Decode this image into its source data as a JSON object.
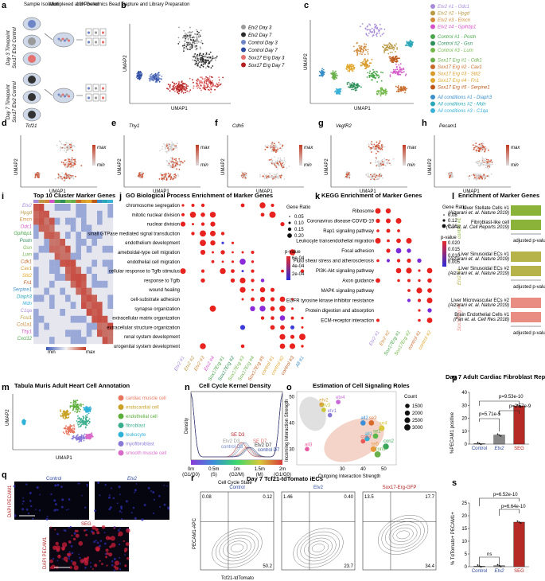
{
  "panel_letters": [
    "a",
    "b",
    "c",
    "d",
    "e",
    "f",
    "g",
    "h",
    "i",
    "j",
    "k",
    "l",
    "m",
    "n",
    "o",
    "p",
    "q",
    "r",
    "s"
  ],
  "colors": {
    "etv2_d3": "#9a9a9a",
    "etv2_d7": "#2b2b2b",
    "ctrl_d3": "#6e86c8",
    "ctrl_d7": "#2c4aa0",
    "seg_d3": "#e57070",
    "seg_d7": "#b32020",
    "heat_hi": "#c23b22",
    "heat_lo": "#dcdcdc",
    "bar_red": "#b52a24",
    "bar_grey": "#888888",
    "gsea_green": "#8bb33a",
    "gsea_olive": "#b6b34a",
    "gsea_salmon": "#e98c82"
  },
  "panel_a": {
    "header": [
      "Sample Isolation",
      "Multiplexed and Pooled",
      "10X Genomics Bead Capture and Library Preparation"
    ],
    "timepoint_d3": "Day 3 Timepoint",
    "timepoint_d7": "Day 7 Timepoint",
    "side_d3": "Sox17 Etv2 Control",
    "side_d7": "Sox17 Etv2 Control"
  },
  "panel_b": {
    "ylabel": "UMAP2",
    "xlabel": "UMAP1",
    "legend": [
      {
        "label": "Etv2 Day 3",
        "color": "#9a9a9a"
      },
      {
        "label": "Etv2 Day 7",
        "color": "#2b2b2b"
      },
      {
        "label": "Control Day 3",
        "color": "#6e86c8"
      },
      {
        "label": "Control Day 7",
        "color": "#2c4aa0"
      },
      {
        "label": "Sox17 Erg Day 3",
        "color": "#e57070"
      },
      {
        "label": "Sox17 Erg Day 7",
        "color": "#b32020"
      }
    ]
  },
  "panel_c": {
    "ylabel": "UMAP2",
    "xlabel": "UMAP1",
    "legend": [
      {
        "label": "Etv2 #1 - Odc1",
        "color": "#a78bd8"
      },
      {
        "label": "Etv2 #2 - Hpgd",
        "color": "#b99a45"
      },
      {
        "label": "Etv2 #3 - Emcn",
        "color": "#d08a3a"
      },
      {
        "label": "Etv2 #4 - Gpihbp1",
        "color": "#d455c8"
      },
      {
        "label": "Control #1 - Postn",
        "color": "#4aa64a"
      },
      {
        "label": "Control #2 - Gsn",
        "color": "#2f8f5a"
      },
      {
        "label": "Control #3 - Lum",
        "color": "#73b84a"
      },
      {
        "label": "Sox17 Erg #1 - Cdk1",
        "color": "#6ab04c"
      },
      {
        "label": "Sox17 Erg #2 - Cav1",
        "color": "#c86a2a"
      },
      {
        "label": "Sox17 Erg #3 - Stit2",
        "color": "#d89b2a"
      },
      {
        "label": "Sox17 Erg #4 - Fn1",
        "color": "#e2a72a"
      },
      {
        "label": "Sox17 Erg #5 - Serpine1",
        "color": "#bd5a1a"
      },
      {
        "label": "All conditions #1 - Diaph3",
        "color": "#3a8fc8"
      },
      {
        "label": "All conditions #2 - Mdn",
        "color": "#2aa7b8"
      },
      {
        "label": "All conditions #3 - C1qa",
        "color": "#3ab2d8"
      }
    ]
  },
  "feature_plots": [
    {
      "letter": "d",
      "gene": "Tcf21"
    },
    {
      "letter": "e",
      "gene": "Thy1"
    },
    {
      "letter": "f",
      "gene": "Cdh5"
    },
    {
      "letter": "g",
      "gene": "VegfR2"
    },
    {
      "letter": "h",
      "gene": "Pecam1"
    }
  ],
  "feature_scale": {
    "max": "max",
    "min": "min",
    "ylabel": "UMAP2",
    "xlabel": "UMAP1"
  },
  "panel_i": {
    "title": "Top 10 Cluster Marker Genes",
    "genes": [
      "Etv2",
      "Hpgd",
      "Emcn",
      "Odc1",
      "Gpihbp1",
      "Postn",
      "Gsn",
      "Lum",
      "Cdk1",
      "Cav1",
      "Stit2",
      "Fn1",
      "Serpine1",
      "Diaph3",
      "Mdn",
      "C1qa",
      "Fosl1",
      "Col1a1",
      "Thy1",
      "Cxcl12"
    ],
    "scale_min": "min",
    "scale_max": "max"
  },
  "panel_j": {
    "title": "GO Biological Process Enrichment of Marker Genes",
    "terms": [
      "chromosome segregation",
      "mitotic nuclear division",
      "nuclear division",
      "small GTPase mediated signal transduction",
      "endothelium development",
      "ameboidal-type cell migration",
      "endothelial cell migration",
      "cellular response to Tgfb stimulus",
      "response to Tgfb",
      "wound healing",
      "cell-substrate adhesion",
      "synapse organization",
      "extracellular matrix organization",
      "extracellular structure organization",
      "renal system development",
      "urogenital system development"
    ],
    "clusters": [
      "Etv2 #1",
      "Etv2 #2",
      "Etv2 #3",
      "Etv2 #4",
      "Sox17Erg #1",
      "Sox17Erg #2",
      "Sox17Erg #3",
      "Sox17Erg #4",
      "Sox17Erg #5",
      "control #1",
      "control #2",
      "control #3",
      "All #1"
    ],
    "legend_size_title": "Gene Ratio",
    "size_labels": [
      "0.05",
      "0.10",
      "0.15",
      "0.20"
    ],
    "legend_p_title": "p-value",
    "p_labels": [
      "6e-04",
      "4e-04",
      "2e-04"
    ]
  },
  "panel_k": {
    "title": "KEGG Enrichment of Marker Genes",
    "terms": [
      "Ribosome",
      "Coronavirus disease-COVID-19",
      "Rap1 signaling pathway",
      "Leukocyte transendothelial migration",
      "Focal adhesion",
      "Fluid shear stress and atherosclerosis",
      "PI3K-Akt signaling pathway",
      "Axon guidance",
      "MAPK signaling pathway",
      "EGFR tyrosine kinase inhibitor resistance",
      "Protein digestion and absorption",
      "ECM-receptor interaction"
    ],
    "clusters": [
      "Etv2 #1",
      "Etv2 #2",
      "Sox17Erg #1",
      "Sox17Erg #2",
      "control #1",
      "control #2"
    ],
    "legend_size_title": "Gene Ratio",
    "size_labels": [
      "0.08",
      "0.12",
      "0.16"
    ],
    "legend_p_title": "p-value",
    "p_labels": [
      "0.020",
      "0.015",
      "0.010",
      "0.005"
    ]
  },
  "panel_l": {
    "title": "Enrichment of Marker Genes",
    "groups": [
      {
        "name": "control #1",
        "color": "#8bb33a",
        "items": [
          "Liver Stellate Cells #1 (Aizarani et. al. Nature 2019)",
          "Fibroblast-like cell (Cui et. al. Cell Reports 2019)"
        ]
      },
      {
        "name": "Etv2 #4",
        "color": "#b6b34a",
        "items": [
          "Liver Sinusoidal ECs #1 (Aizarani et. al. Nature 2019)",
          "Liver Sinusoidal ECs #2 (Aizarani et. al. Nature 2019)"
        ]
      },
      {
        "name": "Sox17Erg #3",
        "color": "#e98c82",
        "items": [
          "Liver Microvascular ECs #2 (Aizarani et. al. Nature 2019)",
          "Brain Endothelial Cells #1 (Fan et. al. Cell Res 2018)"
        ]
      }
    ],
    "xlabel": "adjusted p-value"
  },
  "panel_m": {
    "title": "Tabula Muris Adult Heart Cell Annotation",
    "xlabel": "UMAP1",
    "ylabel": "UMAP2",
    "legend": [
      {
        "label": "cardiac muscle cell",
        "color": "#e8765f"
      },
      {
        "label": "endocardial cell",
        "color": "#c9a227"
      },
      {
        "label": "endothelial cell",
        "color": "#5cae3a"
      },
      {
        "label": "fibroblast",
        "color": "#3aae8c"
      },
      {
        "label": "leukocyte",
        "color": "#2fb2d8"
      },
      {
        "label": "myofibroblast",
        "color": "#8a7ad8"
      },
      {
        "label": "smooth muscle cell",
        "color": "#d86ac8"
      }
    ]
  },
  "panel_n": {
    "title": "Cell Cycle Kernel Density",
    "ylabel": "Density",
    "xlabel": "Cell Cycle State",
    "ticks": [
      "0m",
      "0.5m",
      "1m",
      "1.5m",
      "2m"
    ],
    "phases": [
      "(G1/G0)",
      "(S)",
      "(G2/M)",
      "(M)",
      "(G1/G0)"
    ],
    "curve_labels": [
      "SE D3",
      "Etv2 D3",
      "control D3",
      "SE D7",
      "Etv2 D7",
      "control D7"
    ]
  },
  "panel_o": {
    "title": "Estimation of Cell Signaling Roles",
    "xlabel": "Outgoing Interaction Strength",
    "ylabel": "Incoming Interaction Strength",
    "xticks": [
      "30",
      "40",
      "50"
    ],
    "yticks": [
      "30",
      "40",
      "50"
    ],
    "legend_title": "Count",
    "legend_values": [
      "1500",
      "2000",
      "2500",
      "3000"
    ],
    "points": [
      {
        "label": "etv2",
        "x": 20,
        "y": 47,
        "size": 1800,
        "color": "#d8a23a"
      },
      {
        "label": "etv3",
        "x": 21,
        "y": 45,
        "size": 1600,
        "color": "#c8c83a"
      },
      {
        "label": "etv4",
        "x": 28,
        "y": 48,
        "size": 1700,
        "color": "#c86ad8"
      },
      {
        "label": "etv1",
        "x": 24,
        "y": 43,
        "size": 1500,
        "color": "#8a7ad8"
      },
      {
        "label": "se4",
        "x": 49,
        "y": 38,
        "size": 2500,
        "color": "#d8c83a"
      },
      {
        "label": "se2",
        "x": 44,
        "y": 40,
        "size": 2300,
        "color": "#d86a2a"
      },
      {
        "label": "all2",
        "x": 40,
        "y": 40,
        "size": 2100,
        "color": "#3a8fd8"
      },
      {
        "label": "se1",
        "x": 46,
        "y": 35,
        "size": 2200,
        "color": "#5ab84a"
      },
      {
        "label": "all1",
        "x": 42,
        "y": 34,
        "size": 2000,
        "color": "#2fb2d8"
      },
      {
        "label": "con3",
        "x": 40,
        "y": 33,
        "size": 1700,
        "color": "#e85a5a"
      },
      {
        "label": "se5",
        "x": 45,
        "y": 30,
        "size": 2600,
        "color": "#e89a3a"
      },
      {
        "label": "con2",
        "x": 51,
        "y": 31,
        "size": 2800,
        "color": "#3aa85a"
      },
      {
        "label": "con1",
        "x": 47,
        "y": 28,
        "size": 3000,
        "color": "#6ab04c"
      },
      {
        "label": "all3",
        "x": 13,
        "y": 30,
        "size": 1500,
        "color": "#e85aa0"
      }
    ]
  },
  "panel_p": {
    "title": "Day 7 Adult Cardiac Fibroblast Reprogramming",
    "ylabel": "%PECAM1 positive",
    "categories": [
      "Control",
      "Etv2",
      "SEG"
    ],
    "values": [
      0.3,
      7,
      29.5
    ],
    "ylim": [
      0,
      40
    ],
    "yticks": [
      "0",
      "10",
      "20",
      "30",
      "40"
    ],
    "pvals": [
      "p=9.53e-10",
      "p=5.71e-5",
      "p=2.57e-9"
    ]
  },
  "panel_q": {
    "labels": [
      "Control",
      "Etv2",
      "SEG"
    ],
    "stain": "DAPI PECAM1"
  },
  "panel_r": {
    "title": "Day 7 Tcf21-tdTomato iECs",
    "panels": [
      {
        "name": "Control",
        "ul": "0.08",
        "ur": "0.12",
        "lr": "50.2"
      },
      {
        "name": "Etv2",
        "ul": "1.46",
        "ur": "0.40",
        "lr": "23.7"
      },
      {
        "name": "Sox17-Erg-GFP",
        "ul": "13.5",
        "ur": "17.7",
        "lr": "34.4"
      }
    ],
    "xlabel": "Tcf21-tdTomato",
    "ylabel": "PECAM1-APC"
  },
  "panel_s": {
    "ylabel": "% TdTomato+ PECAM1+",
    "categories": [
      "Control",
      "Etv2",
      "SEG"
    ],
    "values": [
      0.1,
      0.4,
      17.5
    ],
    "ylim": [
      0,
      25
    ],
    "yticks": [
      "0",
      "5",
      "10",
      "15",
      "20",
      "25"
    ],
    "pvals": [
      "p=6.52e-10",
      "p=6.64e-10",
      "ns"
    ]
  },
  "chart_data": [
    {
      "type": "bar",
      "title": "Day 7 Adult Cardiac Fibroblast Reprogramming",
      "categories": [
        "Control",
        "Etv2",
        "SEG"
      ],
      "values": [
        0.3,
        7,
        29.5
      ],
      "ylabel": "%PECAM1 positive",
      "ylim": [
        0,
        40
      ]
    },
    {
      "type": "bar",
      "title": "",
      "categories": [
        "Control",
        "Etv2",
        "SEG"
      ],
      "values": [
        0.1,
        0.4,
        17.5
      ],
      "ylabel": "% TdTomato+ PECAM1+",
      "ylim": [
        0,
        25
      ]
    },
    {
      "type": "scatter",
      "title": "Estimation of Cell Signaling Roles",
      "xlabel": "Outgoing Interaction Strength",
      "ylabel": "Incoming Interaction Strength",
      "x": [
        20,
        21,
        28,
        24,
        49,
        44,
        40,
        46,
        42,
        40,
        45,
        51,
        47,
        13
      ],
      "y": [
        47,
        45,
        48,
        43,
        38,
        40,
        40,
        35,
        34,
        33,
        30,
        31,
        28,
        30
      ]
    }
  ]
}
